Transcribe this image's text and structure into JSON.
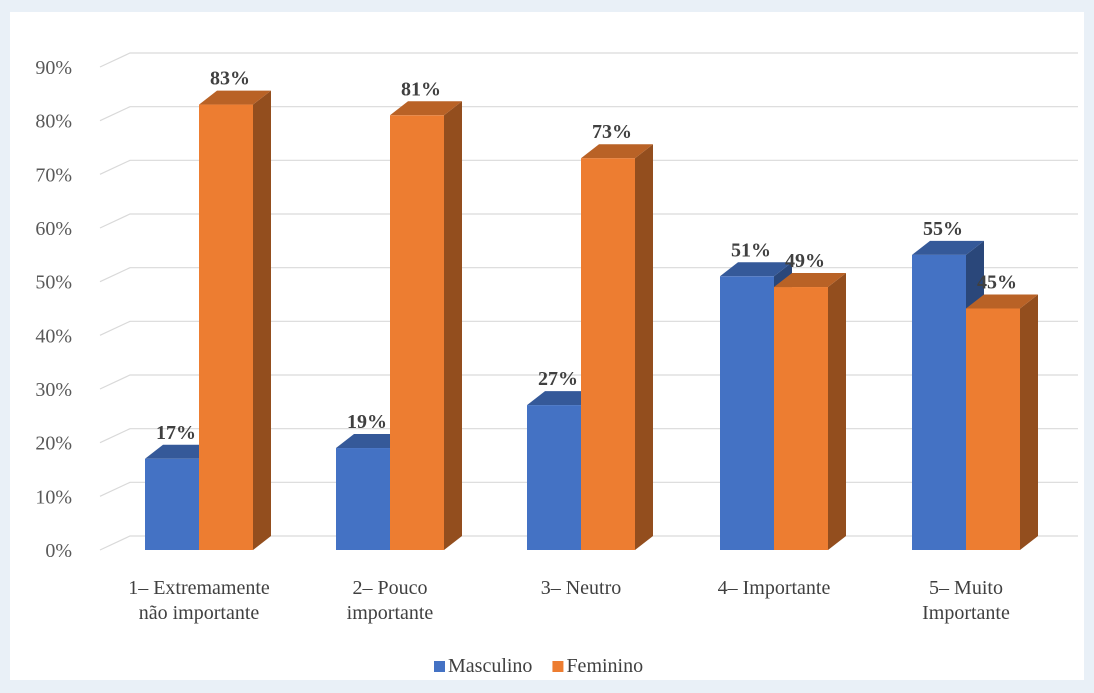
{
  "chart_data": {
    "type": "bar",
    "categories": [
      [
        "1– Extremamente",
        "não importante"
      ],
      [
        "2– Pouco",
        "importante"
      ],
      [
        "3– Neutro"
      ],
      [
        "4– Importante"
      ],
      [
        "5– Muito",
        "Importante"
      ]
    ],
    "series": [
      {
        "name": "Masculino",
        "values": [
          17,
          19,
          27,
          51,
          55
        ],
        "labels": [
          "17%",
          "19%",
          "27%",
          "51%",
          "55%"
        ],
        "color": "#4472c4"
      },
      {
        "name": "Feminino",
        "values": [
          83,
          81,
          73,
          49,
          45
        ],
        "labels": [
          "83%",
          "81%",
          "73%",
          "49%",
          "45%"
        ],
        "color": "#ed7d31"
      }
    ],
    "yticks": [
      "0%",
      "10%",
      "20%",
      "30%",
      "40%",
      "50%",
      "60%",
      "70%",
      "80%",
      "90%"
    ],
    "ylim": [
      0,
      90
    ],
    "grid": true,
    "style": "3d-clustered-column",
    "legend": "bottom"
  }
}
